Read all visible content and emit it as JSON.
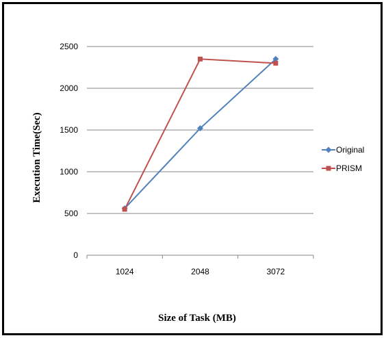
{
  "chart_data": {
    "type": "line",
    "categories": [
      "1024",
      "2048",
      "3072"
    ],
    "series": [
      {
        "name": "Original",
        "values": [
          560,
          1520,
          2350
        ],
        "color": "#4f81bd",
        "marker": "diamond"
      },
      {
        "name": "PRISM",
        "values": [
          550,
          2350,
          2300
        ],
        "color": "#c0504d",
        "marker": "square"
      }
    ],
    "title": "",
    "xlabel": "Size of Task (MB)",
    "ylabel": "Execution Time(Sec)",
    "ylim": [
      0,
      2500
    ],
    "yticks": [
      "0",
      "500",
      "1000",
      "1500",
      "2000",
      "2500"
    ],
    "grid": true,
    "legend_position": "right"
  }
}
